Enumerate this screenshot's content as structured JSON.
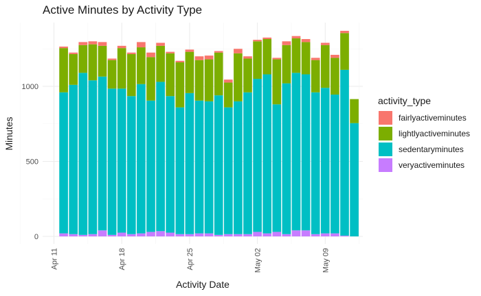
{
  "chart_data": {
    "type": "bar",
    "stacked": true,
    "title": "Active Minutes by Activity Type",
    "xlabel": "Activity Date",
    "ylabel": "Minutes",
    "ylim": [
      0,
      1430
    ],
    "yticks": [
      0,
      500,
      1000
    ],
    "xtick_labels": [
      {
        "label": "Apr 11",
        "day": 0
      },
      {
        "label": "Apr 18",
        "day": 7
      },
      {
        "label": "Apr 25",
        "day": 14
      },
      {
        "label": "May 02",
        "day": 21
      },
      {
        "label": "May 09",
        "day": 28
      }
    ],
    "xlim_days": [
      -1.4,
      32.6
    ],
    "grid": true,
    "legend": {
      "title": "activity_type",
      "position": "right",
      "entries": [
        "fairlyactiveminutes",
        "lightlyactiveminutes",
        "sedentaryminutes",
        "veryactiveminutes"
      ]
    },
    "colors": {
      "fairlyactiveminutes": "#F8766D",
      "lightlyactiveminutes": "#7CAE00",
      "sedentaryminutes": "#00BFC4",
      "veryactiveminutes": "#C77CFF"
    },
    "categories": [
      "Apr 12",
      "Apr 13",
      "Apr 14",
      "Apr 15",
      "Apr 16",
      "Apr 17",
      "Apr 18",
      "Apr 19",
      "Apr 20",
      "Apr 21",
      "Apr 22",
      "Apr 23",
      "Apr 24",
      "Apr 25",
      "Apr 26",
      "Apr 27",
      "Apr 28",
      "Apr 29",
      "Apr 30",
      "May 01",
      "May 02",
      "May 03",
      "May 04",
      "May 05",
      "May 06",
      "May 07",
      "May 08",
      "May 09",
      "May 10",
      "May 11",
      "May 12"
    ],
    "series": [
      {
        "name": "veryactiveminutes",
        "values": [
          20,
          15,
          10,
          15,
          40,
          10,
          25,
          15,
          20,
          30,
          35,
          25,
          15,
          15,
          20,
          20,
          10,
          15,
          15,
          15,
          30,
          20,
          30,
          15,
          40,
          40,
          15,
          20,
          20,
          5,
          0
        ]
      },
      {
        "name": "sedentaryminutes",
        "values": [
          940,
          995,
          1080,
          1025,
          1025,
          975,
          960,
          920,
          995,
          875,
          995,
          910,
          845,
          940,
          885,
          880,
          930,
          845,
          885,
          945,
          1020,
          1060,
          850,
          1005,
          1050,
          1040,
          945,
          970,
          925,
          1105,
          755
        ]
      },
      {
        "name": "lightlyactiveminutes",
        "values": [
          295,
          205,
          185,
          240,
          205,
          190,
          270,
          280,
          245,
          290,
          240,
          285,
          300,
          275,
          270,
          280,
          285,
          165,
          320,
          225,
          250,
          235,
          300,
          255,
          230,
          215,
          215,
          285,
          245,
          245,
          160
        ]
      },
      {
        "name": "fairlyactiveminutes",
        "values": [
          10,
          10,
          20,
          20,
          25,
          10,
          15,
          10,
          35,
          30,
          20,
          10,
          10,
          15,
          25,
          25,
          10,
          20,
          30,
          15,
          10,
          10,
          10,
          25,
          15,
          20,
          15,
          15,
          20,
          15,
          0
        ]
      }
    ]
  }
}
